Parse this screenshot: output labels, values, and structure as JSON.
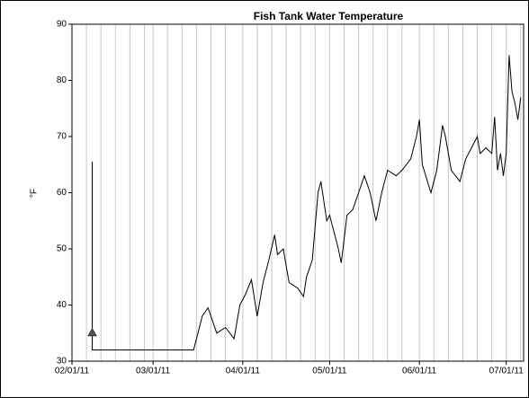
{
  "chart_data": {
    "type": "line",
    "title": "Fish Tank Water Temperature",
    "ylabel": "°F",
    "color": "#000000",
    "grid": true,
    "xlim": [
      "2011-02-01",
      "2011-07-07"
    ],
    "xticks": [
      {
        "value": "2011-02-01",
        "label": "02/01/11"
      },
      {
        "value": "2011-03-01",
        "label": "03/01/11"
      },
      {
        "value": "2011-04-01",
        "label": "04/01/11"
      },
      {
        "value": "2011-05-01",
        "label": "05/01/11"
      },
      {
        "value": "2011-06-01",
        "label": "06/01/11"
      },
      {
        "value": "2011-07-01",
        "label": "07/01/11"
      }
    ],
    "xminorticks": [
      "2011-02-06",
      "2011-02-11",
      "2011-02-16",
      "2011-02-21",
      "2011-02-26",
      "2011-03-06",
      "2011-03-11",
      "2011-03-16",
      "2011-03-21",
      "2011-03-26",
      "2011-04-06",
      "2011-04-11",
      "2011-04-16",
      "2011-04-21",
      "2011-04-26",
      "2011-05-06",
      "2011-05-11",
      "2011-05-16",
      "2011-05-21",
      "2011-05-26",
      "2011-06-06",
      "2011-06-11",
      "2011-06-16",
      "2011-06-21",
      "2011-06-26",
      "2011-07-06"
    ],
    "ylim": [
      30,
      90
    ],
    "yticks": [
      30,
      40,
      50,
      60,
      70,
      80,
      90
    ],
    "x": [
      "2011-02-08",
      "2011-02-08",
      "2011-03-01",
      "2011-03-10",
      "2011-03-15",
      "2011-03-18",
      "2011-03-20",
      "2011-03-23",
      "2011-03-26",
      "2011-03-29",
      "2011-03-31",
      "2011-04-02",
      "2011-04-04",
      "2011-04-06",
      "2011-04-08",
      "2011-04-10",
      "2011-04-12",
      "2011-04-13",
      "2011-04-15",
      "2011-04-17",
      "2011-04-20",
      "2011-04-22",
      "2011-04-23",
      "2011-04-25",
      "2011-04-27",
      "2011-04-28",
      "2011-04-30",
      "2011-05-01",
      "2011-05-04",
      "2011-05-05",
      "2011-05-07",
      "2011-05-09",
      "2011-05-11",
      "2011-05-13",
      "2011-05-15",
      "2011-05-17",
      "2011-05-19",
      "2011-05-21",
      "2011-05-24",
      "2011-05-26",
      "2011-05-29",
      "2011-05-31",
      "2011-06-01",
      "2011-06-02",
      "2011-06-05",
      "2011-06-07",
      "2011-06-09",
      "2011-06-10",
      "2011-06-12",
      "2011-06-15",
      "2011-06-17",
      "2011-06-19",
      "2011-06-21",
      "2011-06-22",
      "2011-06-24",
      "2011-06-26",
      "2011-06-27",
      "2011-06-28",
      "2011-06-29",
      "2011-06-30",
      "2011-07-01",
      "2011-07-02",
      "2011-07-03",
      "2011-07-04",
      "2011-07-05",
      "2011-07-06"
    ],
    "values": [
      65.5,
      32,
      32,
      32,
      32,
      38,
      39.5,
      35,
      36,
      34,
      40,
      42,
      44.5,
      38,
      44,
      48,
      52.5,
      49,
      50,
      44,
      43,
      41.5,
      45,
      48,
      60,
      62,
      55,
      56,
      50,
      47.5,
      56,
      57,
      60,
      63,
      60,
      55,
      60,
      64,
      63,
      64,
      66,
      70,
      73,
      65,
      60,
      64,
      72,
      70,
      64,
      62,
      66,
      68,
      70,
      67,
      68,
      67,
      73.5,
      64,
      67,
      63,
      67,
      84.5,
      78,
      76,
      73,
      77
    ],
    "marker": {
      "x": "2011-02-08",
      "value": 35
    }
  }
}
